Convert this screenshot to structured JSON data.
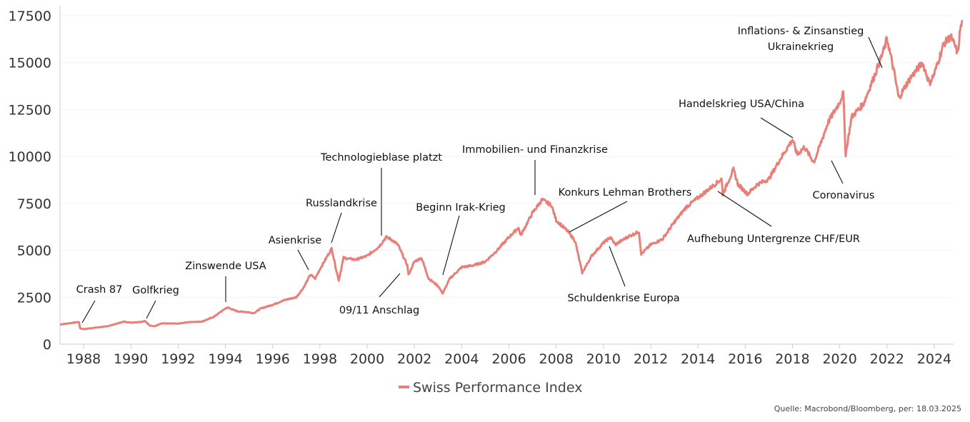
{
  "chart_data": {
    "type": "line",
    "title": "",
    "xlabel": "",
    "ylabel": "",
    "xlim": [
      1987.0,
      2025.3
    ],
    "ylim": [
      0,
      17500
    ],
    "grid": "horizontal",
    "legend_position": "bottom-center",
    "x_ticks": [
      "1988",
      "1990",
      "1992",
      "1994",
      "1996",
      "1998",
      "2000",
      "2002",
      "2004",
      "2006",
      "2008",
      "2010",
      "2012",
      "2014",
      "2016",
      "2018",
      "2020",
      "2022",
      "2024"
    ],
    "y_ticks": [
      "0",
      "2500",
      "5000",
      "7500",
      "10000",
      "12500",
      "15000",
      "17500"
    ],
    "series": [
      {
        "name": "Swiss Performance Index",
        "color": "#e8807a",
        "points": [
          [
            1987.0,
            1050
          ],
          [
            1987.6,
            1150
          ],
          [
            1987.8,
            1180
          ],
          [
            1987.85,
            850
          ],
          [
            1988.0,
            800
          ],
          [
            1988.5,
            880
          ],
          [
            1989.0,
            950
          ],
          [
            1989.7,
            1200
          ],
          [
            1990.0,
            1150
          ],
          [
            1990.5,
            1200
          ],
          [
            1990.6,
            1230
          ],
          [
            1990.8,
            1000
          ],
          [
            1991.0,
            950
          ],
          [
            1991.3,
            1100
          ],
          [
            1992.0,
            1100
          ],
          [
            1992.5,
            1180
          ],
          [
            1993.0,
            1200
          ],
          [
            1993.5,
            1450
          ],
          [
            1994.0,
            1900
          ],
          [
            1994.1,
            1950
          ],
          [
            1994.5,
            1750
          ],
          [
            1995.0,
            1700
          ],
          [
            1995.2,
            1650
          ],
          [
            1995.5,
            1900
          ],
          [
            1996.0,
            2100
          ],
          [
            1996.5,
            2350
          ],
          [
            1997.0,
            2500
          ],
          [
            1997.3,
            3000
          ],
          [
            1997.6,
            3700
          ],
          [
            1997.8,
            3500
          ],
          [
            1998.0,
            4000
          ],
          [
            1998.5,
            5100
          ],
          [
            1998.7,
            3900
          ],
          [
            1998.8,
            3400
          ],
          [
            1999.0,
            4600
          ],
          [
            1999.5,
            4500
          ],
          [
            2000.0,
            4700
          ],
          [
            2000.5,
            5200
          ],
          [
            2000.8,
            5700
          ],
          [
            2001.0,
            5600
          ],
          [
            2001.3,
            5300
          ],
          [
            2001.7,
            4200
          ],
          [
            2001.75,
            3700
          ],
          [
            2002.0,
            4400
          ],
          [
            2002.3,
            4600
          ],
          [
            2002.6,
            3500
          ],
          [
            2003.0,
            3100
          ],
          [
            2003.2,
            2700
          ],
          [
            2003.5,
            3500
          ],
          [
            2004.0,
            4100
          ],
          [
            2004.5,
            4200
          ],
          [
            2005.0,
            4400
          ],
          [
            2005.5,
            5000
          ],
          [
            2006.0,
            5700
          ],
          [
            2006.4,
            6200
          ],
          [
            2006.5,
            5800
          ],
          [
            2007.0,
            7000
          ],
          [
            2007.4,
            7700
          ],
          [
            2007.8,
            7400
          ],
          [
            2008.0,
            6600
          ],
          [
            2008.5,
            6000
          ],
          [
            2008.8,
            5500
          ],
          [
            2009.1,
            3800
          ],
          [
            2009.5,
            4700
          ],
          [
            2010.0,
            5400
          ],
          [
            2010.3,
            5700
          ],
          [
            2010.5,
            5300
          ],
          [
            2011.0,
            5700
          ],
          [
            2011.5,
            6000
          ],
          [
            2011.6,
            4800
          ],
          [
            2012.0,
            5300
          ],
          [
            2012.5,
            5600
          ],
          [
            2013.0,
            6500
          ],
          [
            2013.5,
            7300
          ],
          [
            2014.0,
            7800
          ],
          [
            2014.5,
            8300
          ],
          [
            2015.0,
            8800
          ],
          [
            2015.05,
            8000
          ],
          [
            2015.5,
            9300
          ],
          [
            2015.7,
            8500
          ],
          [
            2016.1,
            8000
          ],
          [
            2016.5,
            8500
          ],
          [
            2017.0,
            8800
          ],
          [
            2017.5,
            9900
          ],
          [
            2018.0,
            10900
          ],
          [
            2018.2,
            10100
          ],
          [
            2018.5,
            10500
          ],
          [
            2018.9,
            9700
          ],
          [
            2019.0,
            10000
          ],
          [
            2019.5,
            11800
          ],
          [
            2020.0,
            12900
          ],
          [
            2020.15,
            13400
          ],
          [
            2020.25,
            10100
          ],
          [
            2020.5,
            12100
          ],
          [
            2021.0,
            12800
          ],
          [
            2021.5,
            14400
          ],
          [
            2021.9,
            15800
          ],
          [
            2022.0,
            16300
          ],
          [
            2022.3,
            14500
          ],
          [
            2022.5,
            13100
          ],
          [
            2022.8,
            13800
          ],
          [
            2023.0,
            14200
          ],
          [
            2023.5,
            15000
          ],
          [
            2023.8,
            13900
          ],
          [
            2024.0,
            14400
          ],
          [
            2024.4,
            16000
          ],
          [
            2024.7,
            16400
          ],
          [
            2025.0,
            15500
          ],
          [
            2025.1,
            16800
          ],
          [
            2025.2,
            17200
          ]
        ]
      }
    ],
    "annotations": [
      {
        "text": "Crash 87"
      },
      {
        "text": "Golfkrieg"
      },
      {
        "text": "Zinswende USA"
      },
      {
        "text": "Asienkrise"
      },
      {
        "text": "Russlandkrise"
      },
      {
        "text": "Technologieblase platzt"
      },
      {
        "text": "09/11 Anschlag"
      },
      {
        "text": "Beginn Irak-Krieg"
      },
      {
        "text": "Immobilien- und Finanzkrise"
      },
      {
        "text": "Konkurs Lehman Brothers"
      },
      {
        "text": "Schuldenkrise Europa"
      },
      {
        "text": "Handelskrieg USA/China"
      },
      {
        "text": "Aufhebung Untergrenze CHF/EUR"
      },
      {
        "text": "Coronavirus"
      },
      {
        "text": "Inflations- & Zinsanstieg"
      },
      {
        "text": "Ukrainekrieg"
      }
    ],
    "source": "Quelle: Macrobond/Bloomberg, per: 18.03.2025"
  }
}
